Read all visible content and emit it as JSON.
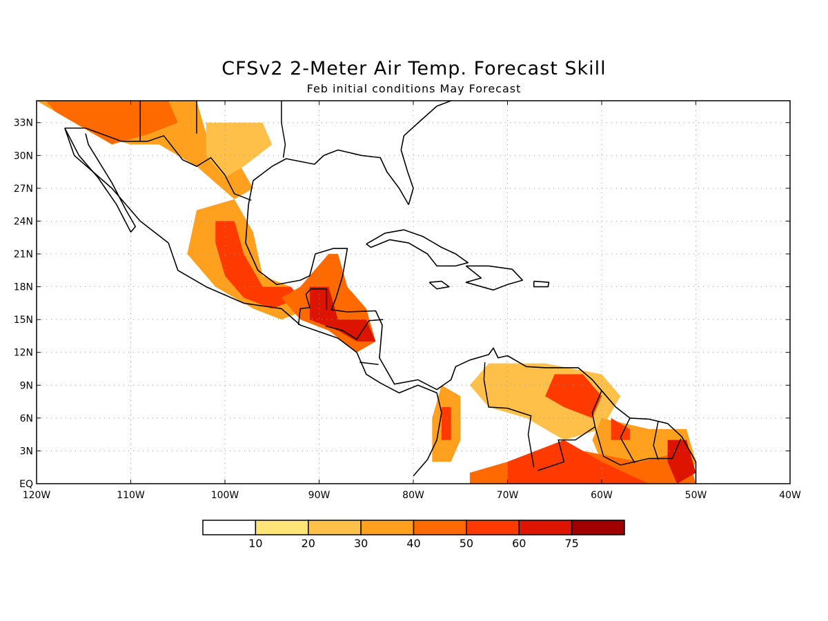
{
  "title": "CFSv2 2-Meter Air Temp. Forecast Skill",
  "subtitle": "Feb initial conditions   May Forecast",
  "map": {
    "lon_range": [
      -120,
      -40
    ],
    "lat_range": [
      0,
      35
    ],
    "lat_ticks": [
      {
        "value": 33,
        "label": "33N"
      },
      {
        "value": 30,
        "label": "30N"
      },
      {
        "value": 27,
        "label": "27N"
      },
      {
        "value": 24,
        "label": "24N"
      },
      {
        "value": 21,
        "label": "21N"
      },
      {
        "value": 18,
        "label": "18N"
      },
      {
        "value": 15,
        "label": "15N"
      },
      {
        "value": 12,
        "label": "12N"
      },
      {
        "value": 9,
        "label": "9N"
      },
      {
        "value": 6,
        "label": "6N"
      },
      {
        "value": 3,
        "label": "3N"
      },
      {
        "value": 0,
        "label": "EQ"
      }
    ],
    "lon_ticks": [
      {
        "value": -120,
        "label": "120W"
      },
      {
        "value": -110,
        "label": "110W"
      },
      {
        "value": -100,
        "label": "100W"
      },
      {
        "value": -90,
        "label": "90W"
      },
      {
        "value": -80,
        "label": "80W"
      },
      {
        "value": -70,
        "label": "70W"
      },
      {
        "value": -60,
        "label": "60W"
      },
      {
        "value": -50,
        "label": "50W"
      },
      {
        "value": -40,
        "label": "40W"
      }
    ],
    "grid": "dotted"
  },
  "colorbar": {
    "colors": [
      "#ffffff",
      "#ffe478",
      "#ffc04a",
      "#ffa01e",
      "#ff6a00",
      "#ff3a00",
      "#dc1400",
      "#a00000"
    ],
    "labels": [
      "10",
      "20",
      "30",
      "40",
      "50",
      "60",
      "75"
    ]
  },
  "skill_regions": [
    {
      "name": "southwest-us",
      "level": 3,
      "pts": [
        [
          -120,
          35
        ],
        [
          -103,
          35
        ],
        [
          -102,
          32
        ],
        [
          -99,
          30
        ],
        [
          -97,
          27
        ],
        [
          -99,
          26
        ],
        [
          -103,
          29
        ],
        [
          -107,
          31
        ],
        [
          -110,
          31
        ],
        [
          -114,
          32
        ],
        [
          -118,
          34
        ]
      ]
    },
    {
      "name": "southwest-us-core",
      "level": 4,
      "pts": [
        [
          -119,
          35
        ],
        [
          -106,
          35
        ],
        [
          -105,
          33
        ],
        [
          -108,
          32
        ],
        [
          -112,
          31
        ],
        [
          -116,
          33
        ],
        [
          -118,
          34
        ]
      ]
    },
    {
      "name": "texas-interior",
      "level": 2,
      "pts": [
        [
          -102,
          33
        ],
        [
          -96,
          33
        ],
        [
          -95,
          31
        ],
        [
          -98,
          29
        ],
        [
          -100,
          28
        ],
        [
          -102,
          30
        ]
      ]
    },
    {
      "name": "mexico-central",
      "level": 3,
      "pts": [
        [
          -103,
          25
        ],
        [
          -99,
          26
        ],
        [
          -97,
          23
        ],
        [
          -96,
          19
        ],
        [
          -93,
          18
        ],
        [
          -91,
          16
        ],
        [
          -94,
          15
        ],
        [
          -97,
          16
        ],
        [
          -101,
          18
        ],
        [
          -104,
          21
        ]
      ]
    },
    {
      "name": "mexico-central-core",
      "level": 5,
      "pts": [
        [
          -101,
          24
        ],
        [
          -99,
          24
        ],
        [
          -98,
          21
        ],
        [
          -96,
          18
        ],
        [
          -93,
          18
        ],
        [
          -92,
          17
        ],
        [
          -95,
          16
        ],
        [
          -98,
          17
        ],
        [
          -100,
          19
        ],
        [
          -101,
          22
        ]
      ]
    },
    {
      "name": "yucatan-guatemala",
      "level": 4,
      "pts": [
        [
          -92,
          18
        ],
        [
          -89,
          21
        ],
        [
          -88,
          21
        ],
        [
          -87,
          18
        ],
        [
          -85,
          16
        ],
        [
          -84,
          13
        ],
        [
          -86,
          12
        ],
        [
          -89,
          14
        ],
        [
          -92,
          15
        ],
        [
          -94,
          17
        ]
      ]
    },
    {
      "name": "central-america-core",
      "level": 6,
      "pts": [
        [
          -91,
          18
        ],
        [
          -89,
          18
        ],
        [
          -88,
          15
        ],
        [
          -85,
          15
        ],
        [
          -84,
          13
        ],
        [
          -86,
          13
        ],
        [
          -88,
          14
        ],
        [
          -91,
          15
        ]
      ]
    },
    {
      "name": "colombia-west",
      "level": 3,
      "pts": [
        [
          -77,
          9
        ],
        [
          -75,
          8
        ],
        [
          -75,
          4
        ],
        [
          -76,
          2
        ],
        [
          -78,
          2
        ],
        [
          -78,
          6
        ]
      ]
    },
    {
      "name": "colombia-west-core",
      "level": 5,
      "pts": [
        [
          -77,
          7
        ],
        [
          -76,
          7
        ],
        [
          -76,
          4
        ],
        [
          -77,
          4
        ]
      ]
    },
    {
      "name": "venezuela-north",
      "level": 2,
      "pts": [
        [
          -72,
          11
        ],
        [
          -66,
          11
        ],
        [
          -60,
          10
        ],
        [
          -58,
          8
        ],
        [
          -60,
          5
        ],
        [
          -64,
          4
        ],
        [
          -68,
          6
        ],
        [
          -72,
          7
        ],
        [
          -74,
          9
        ]
      ]
    },
    {
      "name": "venezuela-core",
      "level": 5,
      "pts": [
        [
          -65,
          10
        ],
        [
          -62,
          10
        ],
        [
          -60,
          8
        ],
        [
          -61,
          6
        ],
        [
          -64,
          7
        ],
        [
          -66,
          8
        ]
      ]
    },
    {
      "name": "guianas",
      "level": 3,
      "pts": [
        [
          -60,
          6
        ],
        [
          -55,
          5
        ],
        [
          -51,
          5
        ],
        [
          -50,
          2
        ],
        [
          -51,
          0
        ],
        [
          -56,
          1
        ],
        [
          -60,
          2
        ],
        [
          -61,
          4
        ]
      ]
    },
    {
      "name": "guianas-core",
      "level": 5,
      "pts": [
        [
          -59,
          6
        ],
        [
          -57,
          5
        ],
        [
          -57,
          4
        ],
        [
          -59,
          4
        ]
      ]
    },
    {
      "name": "amazon-north",
      "level": 4,
      "pts": [
        [
          -74,
          1
        ],
        [
          -70,
          2
        ],
        [
          -66,
          3
        ],
        [
          -62,
          3
        ],
        [
          -56,
          2
        ],
        [
          -51,
          3
        ],
        [
          -50,
          0
        ],
        [
          -74,
          0
        ]
      ]
    },
    {
      "name": "amazon-core",
      "level": 5,
      "pts": [
        [
          -70,
          2
        ],
        [
          -64,
          4
        ],
        [
          -60,
          2
        ],
        [
          -55,
          0
        ],
        [
          -70,
          0
        ]
      ]
    },
    {
      "name": "amapa-core",
      "level": 6,
      "pts": [
        [
          -53,
          4
        ],
        [
          -51,
          4
        ],
        [
          -50,
          1
        ],
        [
          -52,
          0
        ],
        [
          -53,
          2
        ]
      ]
    }
  ],
  "coastlines": [
    {
      "name": "north-america-gulf-coast",
      "pts": [
        [
          -117,
          32.5
        ],
        [
          -116,
          30
        ],
        [
          -112,
          27
        ],
        [
          -109,
          24
        ],
        [
          -106,
          22
        ],
        [
          -105,
          19.5
        ],
        [
          -102,
          18
        ],
        [
          -98,
          16.5
        ],
        [
          -94,
          16
        ],
        [
          -92,
          14.5
        ],
        [
          -88,
          13.3
        ],
        [
          -86,
          12
        ],
        [
          -85,
          10
        ],
        [
          -83.5,
          9.2
        ],
        [
          -81.5,
          8.3
        ],
        [
          -79.5,
          9
        ],
        [
          -77.5,
          8.3
        ],
        [
          -77,
          6.5
        ],
        [
          -77.5,
          4
        ],
        [
          -78.5,
          2.2
        ],
        [
          -80,
          0.7
        ]
      ]
    },
    {
      "name": "baja-california",
      "pts": [
        [
          -117,
          32.5
        ],
        [
          -115.5,
          30
        ],
        [
          -113.5,
          28
        ],
        [
          -111.5,
          25.5
        ],
        [
          -110,
          23
        ],
        [
          -109.5,
          23.5
        ],
        [
          -110.5,
          25
        ],
        [
          -112,
          27.5
        ],
        [
          -114.5,
          31
        ],
        [
          -114.8,
          32
        ]
      ]
    },
    {
      "name": "gulf-of-mexico",
      "pts": [
        [
          -80.5,
          25.5
        ],
        [
          -81.5,
          27
        ],
        [
          -82.8,
          28.5
        ],
        [
          -83.5,
          29.8
        ],
        [
          -85.5,
          30
        ],
        [
          -88,
          30.5
        ],
        [
          -89.5,
          30
        ],
        [
          -90.5,
          29.2
        ],
        [
          -93.5,
          29.7
        ],
        [
          -95,
          29
        ],
        [
          -97,
          27.7
        ],
        [
          -97.5,
          25.5
        ],
        [
          -97.8,
          22
        ],
        [
          -96.5,
          19.5
        ],
        [
          -94.5,
          18.2
        ],
        [
          -92,
          18.6
        ],
        [
          -91,
          19
        ],
        [
          -90.4,
          21
        ],
        [
          -88.5,
          21.5
        ],
        [
          -87,
          21.5
        ],
        [
          -87.5,
          19
        ],
        [
          -88.2,
          17
        ],
        [
          -88.7,
          15.9
        ],
        [
          -87,
          15.7
        ],
        [
          -84,
          15.8
        ],
        [
          -83.3,
          14.5
        ],
        [
          -83.6,
          11.5
        ],
        [
          -82,
          9.1
        ],
        [
          -79.5,
          9.5
        ],
        [
          -77.5,
          8.6
        ],
        [
          -76,
          9.5
        ],
        [
          -75.5,
          10.7
        ],
        [
          -74,
          11.3
        ],
        [
          -72,
          11.8
        ],
        [
          -71.5,
          12.4
        ],
        [
          -71,
          11.5
        ],
        [
          -70,
          11.7
        ],
        [
          -68,
          10.7
        ],
        [
          -66,
          10.6
        ],
        [
          -64,
          10.6
        ],
        [
          -62.5,
          10.6
        ],
        [
          -61,
          9.5
        ],
        [
          -60,
          8.5
        ],
        [
          -58.5,
          7
        ],
        [
          -57,
          6
        ],
        [
          -55,
          5.9
        ],
        [
          -53,
          5.5
        ],
        [
          -51.5,
          4.3
        ],
        [
          -50,
          2
        ],
        [
          -50,
          0
        ]
      ]
    },
    {
      "name": "atlantic-coast-us",
      "pts": [
        [
          -80.5,
          25.5
        ],
        [
          -80,
          27
        ],
        [
          -80.6,
          28.5
        ],
        [
          -81.3,
          30.5
        ],
        [
          -81,
          31.8
        ],
        [
          -79.2,
          33.2
        ],
        [
          -77.5,
          34.5
        ],
        [
          -76,
          35
        ]
      ]
    },
    {
      "name": "cuba",
      "pts": [
        [
          -85,
          21.9
        ],
        [
          -83,
          22.9
        ],
        [
          -81,
          23.2
        ],
        [
          -79,
          22.6
        ],
        [
          -77,
          21.6
        ],
        [
          -75.5,
          21
        ],
        [
          -74.2,
          20.2
        ],
        [
          -75.5,
          19.9
        ],
        [
          -77.5,
          19.9
        ],
        [
          -78.5,
          21
        ],
        [
          -80.5,
          22
        ],
        [
          -82.5,
          22.3
        ],
        [
          -84.5,
          21.6
        ],
        [
          -85,
          21.9
        ]
      ]
    },
    {
      "name": "hispaniola",
      "pts": [
        [
          -74.4,
          19.9
        ],
        [
          -72,
          19.9
        ],
        [
          -69.5,
          19.6
        ],
        [
          -68.4,
          18.6
        ],
        [
          -70,
          18.2
        ],
        [
          -71.5,
          17.7
        ],
        [
          -74.4,
          18.4
        ],
        [
          -72.8,
          18.8
        ],
        [
          -74.4,
          19.9
        ]
      ]
    },
    {
      "name": "jamaica",
      "pts": [
        [
          -78.3,
          18.4
        ],
        [
          -77,
          18.5
        ],
        [
          -76.2,
          18
        ],
        [
          -77.5,
          17.8
        ],
        [
          -78.3,
          18.4
        ]
      ]
    },
    {
      "name": "puerto-rico",
      "pts": [
        [
          -67.2,
          18.5
        ],
        [
          -65.6,
          18.4
        ],
        [
          -65.7,
          18
        ],
        [
          -67.2,
          18
        ],
        [
          -67.2,
          18.5
        ]
      ]
    }
  ],
  "borders": [
    {
      "name": "us-mexico-border",
      "pts": [
        [
          -117,
          32.5
        ],
        [
          -114.8,
          32.5
        ],
        [
          -111,
          31.3
        ],
        [
          -108.2,
          31.3
        ],
        [
          -106.5,
          31.8
        ],
        [
          -104.5,
          29.6
        ],
        [
          -103,
          29
        ],
        [
          -101.5,
          29.8
        ],
        [
          -100,
          28.2
        ],
        [
          -99,
          26.5
        ],
        [
          -97.2,
          25.9
        ]
      ]
    },
    {
      "name": "guatemala-mexico",
      "pts": [
        [
          -92.2,
          14.5
        ],
        [
          -92,
          16
        ],
        [
          -91,
          16.1
        ],
        [
          -91.4,
          17.3
        ],
        [
          -90.9,
          17.8
        ],
        [
          -89.2,
          17.8
        ]
      ]
    },
    {
      "name": "belize",
      "pts": [
        [
          -89.2,
          17.8
        ],
        [
          -89.2,
          15.9
        ]
      ]
    },
    {
      "name": "honduras-nicaragua",
      "pts": [
        [
          -89.3,
          14.4
        ],
        [
          -87.5,
          14
        ],
        [
          -86,
          13.2
        ],
        [
          -84.7,
          14.9
        ],
        [
          -83.2,
          15
        ]
      ]
    },
    {
      "name": "nicaragua-costa-rica",
      "pts": [
        [
          -85.7,
          11.1
        ],
        [
          -83.7,
          10.9
        ]
      ]
    },
    {
      "name": "colombia-venezuela",
      "pts": [
        [
          -72.4,
          11.1
        ],
        [
          -72.5,
          9.5
        ],
        [
          -72,
          7
        ],
        [
          -70,
          6.9
        ],
        [
          -67.5,
          6.2
        ],
        [
          -67.8,
          4.5
        ],
        [
          -67.2,
          1.5
        ]
      ]
    },
    {
      "name": "venezuela-guyana",
      "pts": [
        [
          -60,
          8.5
        ],
        [
          -61,
          6.5
        ],
        [
          -60.7,
          5.2
        ],
        [
          -62.8,
          4
        ],
        [
          -64.6,
          4
        ],
        [
          -64,
          2
        ],
        [
          -66.8,
          1.2
        ]
      ]
    },
    {
      "name": "guyana-suriname",
      "pts": [
        [
          -57,
          6
        ],
        [
          -58,
          4.2
        ],
        [
          -56.5,
          1.9
        ]
      ]
    },
    {
      "name": "suriname-french-guiana",
      "pts": [
        [
          -54,
          5.7
        ],
        [
          -54.5,
          3.5
        ],
        [
          -54,
          2.2
        ]
      ]
    },
    {
      "name": "brazil-guianas",
      "pts": [
        [
          -60.7,
          5.2
        ],
        [
          -59.8,
          2.5
        ],
        [
          -58,
          1.7
        ],
        [
          -55,
          2.3
        ],
        [
          -52.5,
          2.3
        ],
        [
          -51.6,
          4.1
        ]
      ]
    },
    {
      "name": "us-state-lines",
      "pts": [
        [
          -109,
          35
        ],
        [
          -109,
          31.3
        ]
      ]
    },
    {
      "name": "us-state-lines-2",
      "pts": [
        [
          -103,
          35
        ],
        [
          -103,
          32
        ]
      ]
    },
    {
      "name": "texas-louisiana",
      "pts": [
        [
          -94,
          35
        ],
        [
          -94,
          33
        ],
        [
          -93.6,
          31
        ],
        [
          -93.8,
          29.8
        ]
      ]
    }
  ]
}
